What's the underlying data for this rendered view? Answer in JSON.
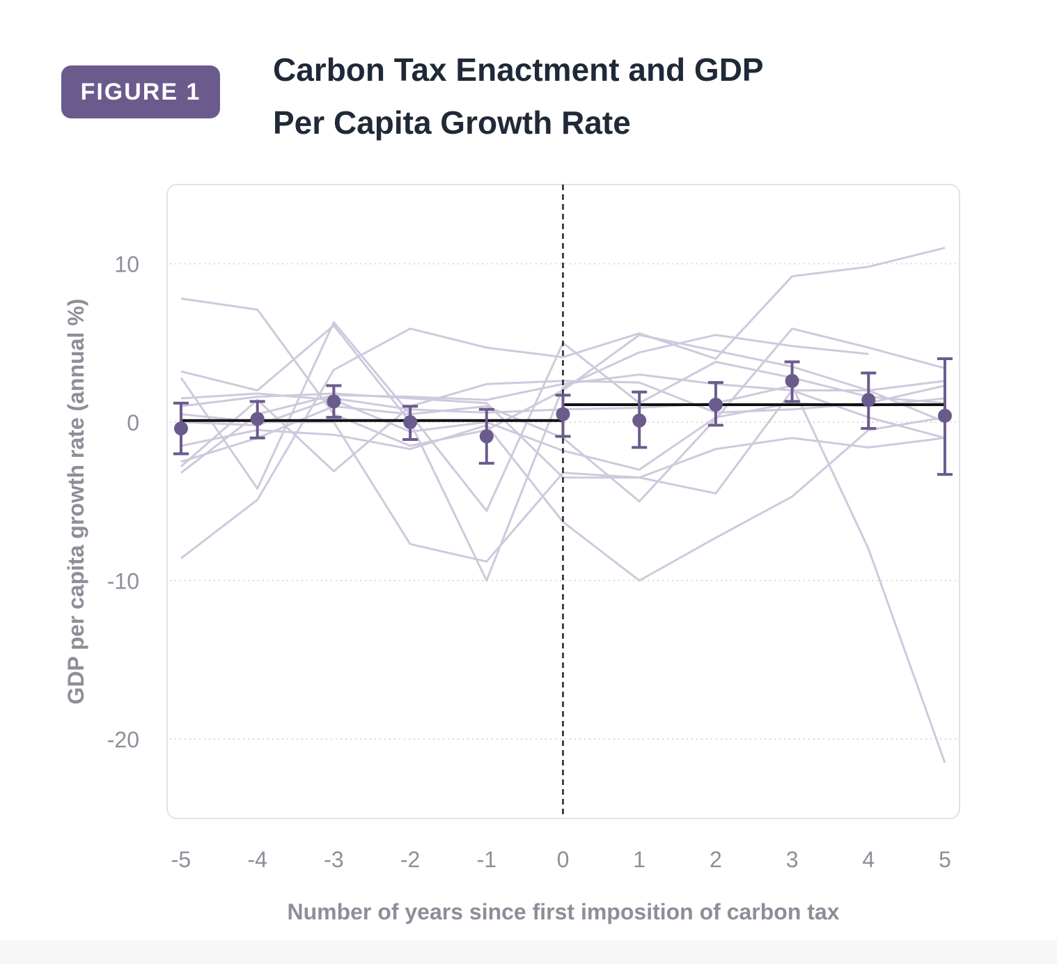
{
  "figure_badge": "FIGURE 1",
  "title_line1": "Carbon Tax Enactment and GDP",
  "title_line2": "Per Capita Growth Rate",
  "colors": {
    "accent": "#6b5b8c",
    "country_lines": "#cfc9dd",
    "mean_line": "#111111",
    "grid": "#d9d9de",
    "tick_text": "#8e8e99"
  },
  "chart_data": {
    "type": "line",
    "title": "Carbon Tax Enactment and GDP Per Capita Growth Rate",
    "xlabel": "Number of years since first imposition of carbon tax",
    "ylabel": "GDP per capita growth rate (annual %)",
    "x": [
      -5,
      -4,
      -3,
      -2,
      -1,
      0,
      1,
      2,
      3,
      4,
      5
    ],
    "xticks": [
      "-5",
      "-4",
      "-3",
      "-2",
      "-1",
      "0",
      "1",
      "2",
      "3",
      "4",
      "5"
    ],
    "yticks": [
      10,
      0,
      -10,
      -20
    ],
    "ytick_labels": [
      "10",
      "0",
      "-10",
      "-20"
    ],
    "xlim": [
      -5.2,
      5.2
    ],
    "ylim": [
      -25,
      15
    ],
    "grid": "horizontal dotted",
    "reference_line_x": 0,
    "estimates": {
      "x": [
        -5,
        -4,
        -3,
        -2,
        -1,
        0,
        1,
        2,
        3,
        4,
        5
      ],
      "y": [
        -0.4,
        0.2,
        1.3,
        0.0,
        -0.9,
        0.5,
        0.1,
        1.1,
        2.6,
        1.4,
        0.4
      ],
      "ci_low": [
        -2.0,
        -1.0,
        0.3,
        -1.1,
        -2.6,
        -0.9,
        -1.6,
        -0.2,
        1.3,
        -0.4,
        -3.3
      ],
      "ci_high": [
        1.2,
        1.3,
        2.3,
        1.0,
        0.8,
        1.7,
        1.9,
        2.5,
        3.8,
        3.1,
        4.0
      ]
    },
    "period_means": [
      {
        "x_start": -5,
        "x_end": 0,
        "y": 0.1
      },
      {
        "x_start": 0,
        "x_end": 5,
        "y": 1.1
      }
    ],
    "country_series": [
      {
        "values": [
          7.8,
          7.1,
          0.5,
          -1.5,
          -0.5,
          2.0,
          5.5,
          4.5,
          3.5,
          2.0,
          0.0
        ]
      },
      {
        "values": [
          3.2,
          2.0,
          6.1,
          0.0,
          -10.0,
          2.2,
          4.4,
          5.5,
          4.8,
          4.3,
          null
        ]
      },
      {
        "values": [
          2.8,
          -4.2,
          6.3,
          0.5,
          -5.6,
          5.0,
          1.2,
          3.8,
          2.8,
          1.6,
          1.2
        ]
      },
      {
        "values": [
          -8.6,
          -4.9,
          3.3,
          5.9,
          4.7,
          4.1,
          5.6,
          4.0,
          9.2,
          9.8,
          11.0
        ]
      },
      {
        "values": [
          -3.2,
          0.5,
          1.7,
          1.6,
          1.4,
          2.4,
          3.0,
          2.4,
          2.0,
          2.0,
          2.6
        ]
      },
      {
        "values": [
          -2.8,
          1.4,
          -3.1,
          1.0,
          2.4,
          2.6,
          2.5,
          0.6,
          0.8,
          1.2,
          2.3
        ]
      },
      {
        "values": [
          1.5,
          1.8,
          1.4,
          -0.6,
          0.0,
          -1.8,
          -3.0,
          0.3,
          1.2,
          1.0,
          1.5
        ]
      },
      {
        "values": [
          0.5,
          0.0,
          0.0,
          -7.7,
          -8.8,
          -3.2,
          -3.5,
          -4.5,
          2.0,
          0.3,
          -1.0
        ]
      },
      {
        "values": [
          -2.5,
          -1.0,
          1.0,
          0.5,
          1.0,
          -1.0,
          -5.0,
          0.2,
          5.9,
          4.7,
          3.4
        ]
      },
      {
        "values": [
          -1.5,
          -0.5,
          -0.8,
          -1.7,
          -0.2,
          -6.3,
          -10.0,
          -7.3,
          -4.7,
          -0.5,
          0.3
        ]
      },
      {
        "values": [
          0.0,
          -0.2,
          1.5,
          0.8,
          0.6,
          0.8,
          0.9,
          1.2,
          2.3,
          -8.0,
          -21.5
        ]
      },
      {
        "values": [
          1.0,
          1.6,
          1.8,
          1.5,
          1.2,
          -3.5,
          -3.5,
          -1.7,
          -1.0,
          -1.6,
          -1.0
        ]
      }
    ]
  }
}
